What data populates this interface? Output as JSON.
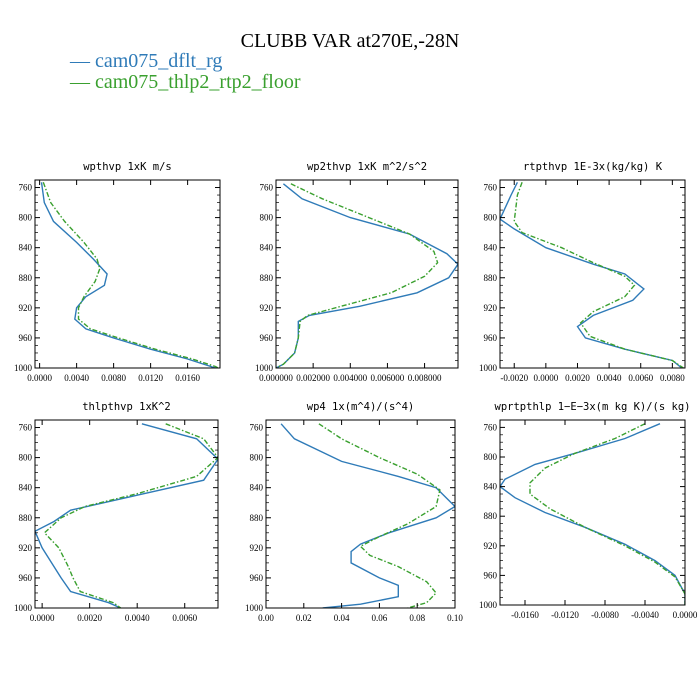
{
  "title": "CLUBB VAR at270E,-28N",
  "legend": [
    {
      "label": "cam075_dflt_rg",
      "color": "#2f7bb8"
    },
    {
      "label": "cam075_thlp2_rtp2_floor",
      "color": "#3aa02f"
    }
  ],
  "chart_data": [
    {
      "type": "line",
      "title": "wpthvp  1xK m/s",
      "xlim": [
        -0.0005,
        0.0195
      ],
      "ylim": [
        1000,
        750
      ],
      "yticks": [
        760,
        800,
        840,
        880,
        920,
        960,
        1000
      ],
      "xticks": [
        0.0,
        0.004,
        0.008,
        0.012,
        0.016
      ],
      "xtick_labels": [
        "0.0000",
        "0.0040",
        "0.0080",
        "0.0120",
        "0.0160"
      ],
      "series": [
        {
          "name": "cam075_dflt_rg",
          "points": [
            [
              0.0002,
              753
            ],
            [
              0.0005,
              780
            ],
            [
              0.0015,
              805
            ],
            [
              0.004,
              833
            ],
            [
              0.0058,
              855
            ],
            [
              0.0073,
              875
            ],
            [
              0.007,
              890
            ],
            [
              0.005,
              905
            ],
            [
              0.004,
              920
            ],
            [
              0.0038,
              935
            ],
            [
              0.005,
              948
            ],
            [
              0.008,
              960
            ],
            [
              0.012,
              975
            ],
            [
              0.016,
              988
            ],
            [
              0.0185,
              998
            ],
            [
              0.019,
              1000
            ]
          ]
        },
        {
          "name": "cam075_thlp2_rtp2_floor",
          "points": [
            [
              0.0004,
              753
            ],
            [
              0.0012,
              780
            ],
            [
              0.0027,
              805
            ],
            [
              0.0048,
              833
            ],
            [
              0.0062,
              855
            ],
            [
              0.0065,
              868
            ],
            [
              0.006,
              885
            ],
            [
              0.0048,
              905
            ],
            [
              0.0042,
              920
            ],
            [
              0.0042,
              935
            ],
            [
              0.0055,
              948
            ],
            [
              0.0085,
              960
            ],
            [
              0.0125,
              975
            ],
            [
              0.0165,
              988
            ],
            [
              0.019,
              998
            ],
            [
              0.0193,
              1000
            ]
          ]
        }
      ]
    },
    {
      "type": "line",
      "title": "wp2thvp  1xK m^2/s^2",
      "xlim": [
        0.0,
        0.0098
      ],
      "ylim": [
        1000,
        750
      ],
      "yticks": [
        760,
        800,
        840,
        880,
        920,
        960,
        1000
      ],
      "xticks": [
        0.0,
        0.002,
        0.004,
        0.006,
        0.008
      ],
      "xtick_labels": [
        "0.000000",
        "0.002000",
        "0.004000",
        "0.006000",
        "0.008000"
      ],
      "series": [
        {
          "name": "cam075_dflt_rg",
          "points": [
            [
              0.0004,
              755
            ],
            [
              0.0014,
              775
            ],
            [
              0.004,
              800
            ],
            [
              0.0072,
              822
            ],
            [
              0.0092,
              848
            ],
            [
              0.0098,
              862
            ],
            [
              0.0093,
              880
            ],
            [
              0.0076,
              900
            ],
            [
              0.0045,
              918
            ],
            [
              0.0018,
              930
            ],
            [
              0.0012,
              938
            ],
            [
              0.0012,
              960
            ],
            [
              0.001,
              980
            ],
            [
              0.0004,
              995
            ],
            [
              0.0,
              1000
            ]
          ]
        },
        {
          "name": "cam075_thlp2_rtp2_floor",
          "points": [
            [
              0.0008,
              755
            ],
            [
              0.0025,
              775
            ],
            [
              0.005,
              800
            ],
            [
              0.0072,
              822
            ],
            [
              0.0085,
              845
            ],
            [
              0.0087,
              860
            ],
            [
              0.008,
              878
            ],
            [
              0.0062,
              900
            ],
            [
              0.0035,
              918
            ],
            [
              0.0017,
              930
            ],
            [
              0.0013,
              938
            ],
            [
              0.0012,
              960
            ],
            [
              0.001,
              980
            ],
            [
              0.0004,
              995
            ],
            [
              0.0,
              1000
            ]
          ]
        }
      ]
    },
    {
      "type": "line",
      "title": "rtpthvp  1E-3x(kg/kg) K",
      "xlim": [
        -0.0029,
        0.0088
      ],
      "ylim": [
        1000,
        750
      ],
      "yticks": [
        760,
        800,
        840,
        880,
        920,
        960,
        1000
      ],
      "xticks": [
        -0.002,
        0.0,
        0.002,
        0.004,
        0.006,
        0.008
      ],
      "xtick_labels": [
        "-0.0020",
        "0.0000",
        "0.0020",
        "0.0040",
        "0.0060",
        "0.0080"
      ],
      "series": [
        {
          "name": "cam075_dflt_rg",
          "points": [
            [
              -0.0018,
              753
            ],
            [
              -0.0022,
              770
            ],
            [
              -0.0029,
              802
            ],
            [
              -0.002,
              815
            ],
            [
              0.0,
              840
            ],
            [
              0.003,
              862
            ],
            [
              0.005,
              875
            ],
            [
              0.0062,
              895
            ],
            [
              0.0055,
              910
            ],
            [
              0.003,
              930
            ],
            [
              0.002,
              945
            ],
            [
              0.0025,
              960
            ],
            [
              0.005,
              975
            ],
            [
              0.008,
              990
            ],
            [
              0.0086,
              1000
            ]
          ]
        },
        {
          "name": "cam075_thlp2_rtp2_floor",
          "points": [
            [
              -0.0015,
              753
            ],
            [
              -0.0018,
              770
            ],
            [
              -0.002,
              805
            ],
            [
              -0.0015,
              820
            ],
            [
              0.001,
              840
            ],
            [
              0.003,
              860
            ],
            [
              0.005,
              878
            ],
            [
              0.0056,
              890
            ],
            [
              0.005,
              905
            ],
            [
              0.003,
              925
            ],
            [
              0.0022,
              940
            ],
            [
              0.0028,
              958
            ],
            [
              0.005,
              975
            ],
            [
              0.008,
              990
            ],
            [
              0.0087,
              1000
            ]
          ]
        }
      ]
    },
    {
      "type": "line",
      "title": "thlpthvp  1xK^2",
      "xlim": [
        -0.0003,
        0.0074
      ],
      "ylim": [
        1000,
        750
      ],
      "yticks": [
        760,
        800,
        840,
        880,
        920,
        960,
        1000
      ],
      "xticks": [
        0.0,
        0.002,
        0.004,
        0.006
      ],
      "xtick_labels": [
        "0.0000",
        "0.0020",
        "0.0040",
        "0.0060"
      ],
      "series": [
        {
          "name": "cam075_dflt_rg",
          "points": [
            [
              0.0042,
              755
            ],
            [
              0.0065,
              775
            ],
            [
              0.0074,
              802
            ],
            [
              0.0068,
              830
            ],
            [
              0.004,
              850
            ],
            [
              0.0012,
              870
            ],
            [
              0.0005,
              885
            ],
            [
              -0.0003,
              898
            ],
            [
              0.0,
              920
            ],
            [
              0.0005,
              945
            ],
            [
              0.0008,
              960
            ],
            [
              0.0012,
              978
            ],
            [
              0.0028,
              993
            ],
            [
              0.0033,
              1000
            ]
          ]
        },
        {
          "name": "cam075_thlp2_rtp2_floor",
          "points": [
            [
              0.0052,
              755
            ],
            [
              0.0068,
              775
            ],
            [
              0.0074,
              800
            ],
            [
              0.0065,
              825
            ],
            [
              0.004,
              848
            ],
            [
              0.0018,
              865
            ],
            [
              0.0008,
              880
            ],
            [
              0.0001,
              900
            ],
            [
              0.0007,
              920
            ],
            [
              0.0011,
              945
            ],
            [
              0.0013,
              960
            ],
            [
              0.0016,
              978
            ],
            [
              0.003,
              993
            ],
            [
              0.0033,
              1000
            ]
          ]
        }
      ]
    },
    {
      "type": "line",
      "title": "wp4  1x(m^4)/(s^4)",
      "xlim": [
        0.0,
        0.1
      ],
      "ylim": [
        1000,
        750
      ],
      "yticks": [
        760,
        800,
        840,
        880,
        920,
        960,
        1000
      ],
      "xticks": [
        0.0,
        0.02,
        0.04,
        0.06,
        0.08,
        0.1
      ],
      "xtick_labels": [
        "0.00",
        "0.02",
        "0.04",
        "0.06",
        "0.08",
        "0.10"
      ],
      "series": [
        {
          "name": "cam075_dflt_rg",
          "points": [
            [
              0.008,
              755
            ],
            [
              0.015,
              775
            ],
            [
              0.04,
              805
            ],
            [
              0.07,
              825
            ],
            [
              0.09,
              840
            ],
            [
              0.1,
              865
            ],
            [
              0.09,
              880
            ],
            [
              0.065,
              900
            ],
            [
              0.05,
              915
            ],
            [
              0.045,
              925
            ],
            [
              0.045,
              940
            ],
            [
              0.06,
              960
            ],
            [
              0.07,
              970
            ],
            [
              0.07,
              985
            ],
            [
              0.05,
              995
            ],
            [
              0.03,
              1000
            ]
          ]
        },
        {
          "name": "cam075_thlp2_rtp2_floor",
          "points": [
            [
              0.028,
              755
            ],
            [
              0.04,
              775
            ],
            [
              0.06,
              800
            ],
            [
              0.08,
              822
            ],
            [
              0.092,
              843
            ],
            [
              0.09,
              865
            ],
            [
              0.075,
              888
            ],
            [
              0.06,
              905
            ],
            [
              0.05,
              918
            ],
            [
              0.055,
              930
            ],
            [
              0.07,
              945
            ],
            [
              0.085,
              965
            ],
            [
              0.09,
              980
            ],
            [
              0.085,
              993
            ],
            [
              0.075,
              1000
            ]
          ]
        }
      ]
    },
    {
      "type": "line",
      "title": "wprtpthlp  1−E−3x(m kg K)/(s kg)",
      "xlim": [
        -0.0185,
        0.0
      ],
      "ylim": [
        1000,
        750
      ],
      "yticks": [
        760,
        800,
        840,
        880,
        920,
        960,
        1000
      ],
      "xticks": [
        -0.016,
        -0.012,
        -0.008,
        -0.004,
        0.0
      ],
      "xtick_labels": [
        "-0.0160",
        "-0.0120",
        "-0.0080",
        "-0.0040",
        "0.0000"
      ],
      "series": [
        {
          "name": "cam075_dflt_rg",
          "points": [
            [
              -0.0025,
              755
            ],
            [
              -0.006,
              775
            ],
            [
              -0.011,
              795
            ],
            [
              -0.015,
              810
            ],
            [
              -0.018,
              830
            ],
            [
              -0.0185,
              840
            ],
            [
              -0.017,
              855
            ],
            [
              -0.014,
              875
            ],
            [
              -0.01,
              895
            ],
            [
              -0.006,
              918
            ],
            [
              -0.003,
              940
            ],
            [
              -0.001,
              960
            ],
            [
              0.0,
              985
            ],
            [
              0.0,
              1000
            ]
          ]
        },
        {
          "name": "cam075_thlp2_rtp2_floor",
          "points": [
            [
              -0.004,
              755
            ],
            [
              -0.007,
              775
            ],
            [
              -0.011,
              795
            ],
            [
              -0.014,
              815
            ],
            [
              -0.0155,
              835
            ],
            [
              -0.0155,
              850
            ],
            [
              -0.0135,
              870
            ],
            [
              -0.01,
              895
            ],
            [
              -0.006,
              920
            ],
            [
              -0.003,
              942
            ],
            [
              -0.001,
              962
            ],
            [
              0.0,
              985
            ],
            [
              0.0,
              1000
            ]
          ]
        }
      ]
    }
  ]
}
